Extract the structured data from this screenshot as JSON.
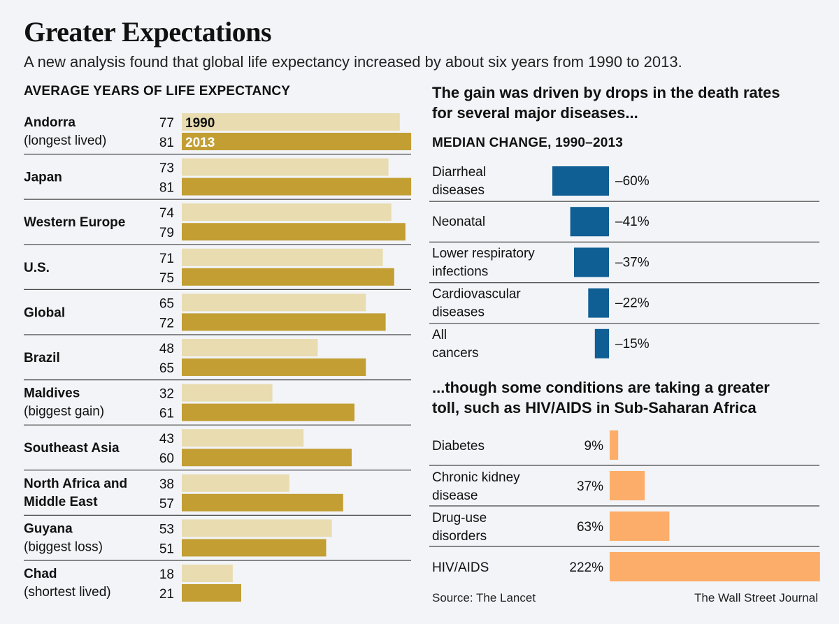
{
  "header": {
    "title": "Greater Expectations",
    "subtitle": "A new analysis found that global life expectancy increased by about six years from 1990 to 2013."
  },
  "left": {
    "heading": "AVERAGE YEARS OF LIFE EXPECTANCY",
    "legend": [
      "1990",
      "2013"
    ]
  },
  "right": {
    "heading_top": [
      "The gain was driven by drops in the death rates",
      "for several major diseases..."
    ],
    "subheading": "MEDIAN CHANGE, 1990–2013",
    "heading_bottom": [
      "...though some conditions are taking a greater",
      "toll, such as HIV/AIDS in Sub-Saharan Africa"
    ]
  },
  "footer": {
    "source": "Source: The Lancet",
    "credit": "The Wall Street Journal"
  },
  "colors": {
    "bar_1990": "#e8dcb0",
    "bar_2013": "#c29e33",
    "decrease": "#0f5e94",
    "increase": "#fbad69",
    "rule": "#444444"
  },
  "chart_data": [
    {
      "type": "bar",
      "title": "AVERAGE YEARS OF LIFE EXPECTANCY",
      "orientation": "horizontal",
      "xlim": [
        0,
        81
      ],
      "categories": [
        [
          "Andorra",
          "(longest lived)"
        ],
        [
          "Japan"
        ],
        [
          "Western Europe"
        ],
        [
          "U.S."
        ],
        [
          "Global"
        ],
        [
          "Brazil"
        ],
        [
          "Maldives",
          "(biggest gain)"
        ],
        [
          "Southeast Asia"
        ],
        [
          "North Africa and",
          "Middle East"
        ],
        [
          "Guyana",
          "(biggest loss)"
        ],
        [
          "Chad",
          "(shortest lived)"
        ]
      ],
      "series": [
        {
          "name": "1990",
          "values": [
            77,
            73,
            74,
            71,
            65,
            48,
            32,
            43,
            38,
            53,
            18
          ]
        },
        {
          "name": "2013",
          "values": [
            81,
            81,
            79,
            75,
            72,
            65,
            61,
            60,
            57,
            51,
            21
          ]
        }
      ]
    },
    {
      "type": "bar",
      "title": "MEDIAN CHANGE, 1990–2013",
      "orientation": "horizontal",
      "categories": [
        [
          "Diarrheal",
          "diseases"
        ],
        [
          "Neonatal"
        ],
        [
          "Lower respiratory",
          "infections"
        ],
        [
          "Cardiovascular",
          "diseases"
        ],
        [
          "All",
          "cancers"
        ]
      ],
      "values": [
        -60,
        -41,
        -37,
        -22,
        -15
      ],
      "labels": [
        "–60%",
        "–41%",
        "–37%",
        "–22%",
        "–15%"
      ]
    },
    {
      "type": "bar",
      "orientation": "horizontal",
      "categories": [
        [
          "Diabetes"
        ],
        [
          "Chronic kidney",
          "disease"
        ],
        [
          "Drug-use",
          "disorders"
        ],
        [
          "HIV/AIDS"
        ]
      ],
      "values": [
        9,
        37,
        63,
        222
      ],
      "labels": [
        "9%",
        "37%",
        "63%",
        "222%"
      ]
    }
  ]
}
